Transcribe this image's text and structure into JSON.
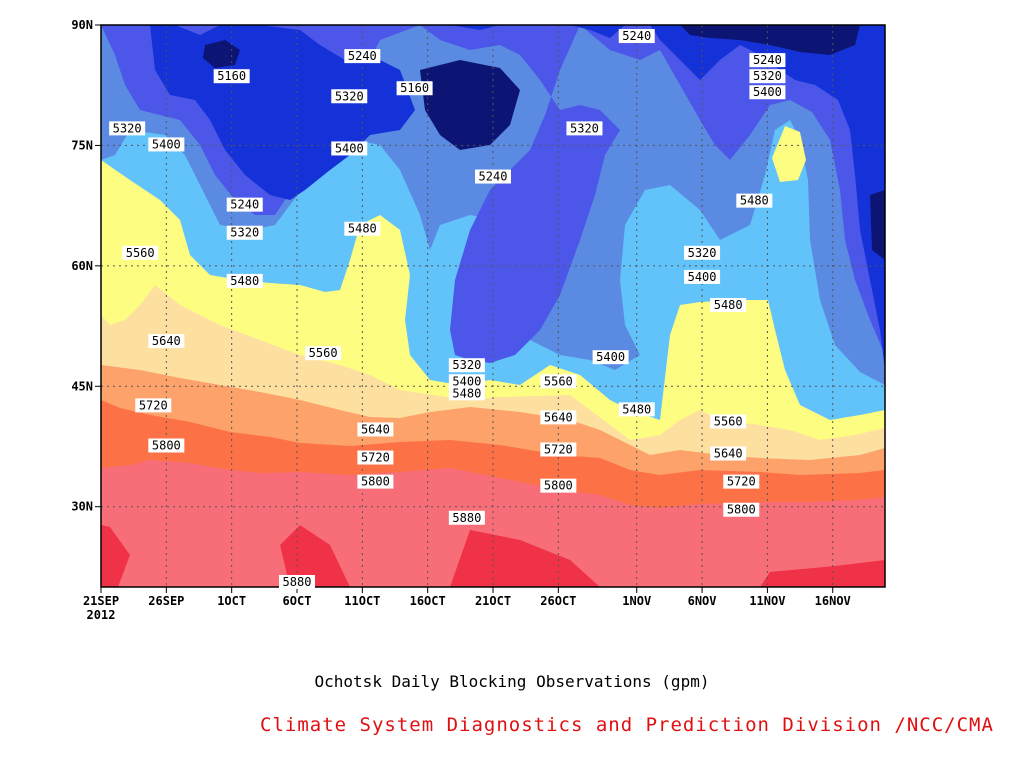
{
  "chart_data": {
    "type": "heatmap",
    "subtype": "filled-contour (Hovmoller, time-latitude)",
    "title": "Ochotsk Daily Blocking Observations (gpm)",
    "source": "Climate System Diagnostics and Prediction Division /NCC/CMA",
    "x_tick_labels": [
      "21SEP",
      "26SEP",
      "1OCT",
      "6OCT",
      "11OCT",
      "16OCT",
      "21OCT",
      "26OCT",
      "1NOV",
      "6NOV",
      "11NOV",
      "16NOV"
    ],
    "x_year_label": "2012",
    "x_dates": [
      "2012-09-21",
      "2012-09-26",
      "2012-10-01",
      "2012-10-06",
      "2012-10-11",
      "2012-10-16",
      "2012-10-21",
      "2012-10-26",
      "2012-11-01",
      "2012-11-06",
      "2012-11-11",
      "2012-11-16"
    ],
    "xlim": [
      "2012-09-21",
      "2012-11-20"
    ],
    "y_tick_labels": [
      "30N",
      "45N",
      "60N",
      "75N",
      "90N"
    ],
    "y_ticks": [
      30,
      45,
      60,
      75,
      90
    ],
    "ylim": [
      20,
      90
    ],
    "grid": true,
    "contour_levels": [
      5160,
      5240,
      5320,
      5400,
      5480,
      5560,
      5640,
      5720,
      5800,
      5880
    ],
    "band_colors": [
      "#0c1573",
      "#1532d8",
      "#4c57ea",
      "#5a8ae2",
      "#62c3fb",
      "#fdfd82",
      "#fde0a0",
      "#fca26a",
      "#fc7146",
      "#f86e78",
      "#ef3248"
    ],
    "contour_labels": [
      {
        "text": "5160",
        "date": "2012-10-01",
        "lat": 83.5
      },
      {
        "text": "5240",
        "date": "2012-10-11",
        "lat": 86
      },
      {
        "text": "5160",
        "date": "2012-10-15",
        "lat": 82
      },
      {
        "text": "5320",
        "date": "2012-10-10",
        "lat": 81
      },
      {
        "text": "5240",
        "date": "2012-11-01",
        "lat": 88.5
      },
      {
        "text": "5240",
        "date": "2012-11-11",
        "lat": 85.5
      },
      {
        "text": "5320",
        "date": "2012-11-11",
        "lat": 83.5
      },
      {
        "text": "5400",
        "date": "2012-11-11",
        "lat": 81.5
      },
      {
        "text": "5320",
        "date": "2012-09-23",
        "lat": 77
      },
      {
        "text": "5400",
        "date": "2012-09-26",
        "lat": 75
      },
      {
        "text": "5400",
        "date": "2012-10-10",
        "lat": 74.5
      },
      {
        "text": "5320",
        "date": "2012-10-28",
        "lat": 77
      },
      {
        "text": "5240",
        "date": "2012-10-21",
        "lat": 71
      },
      {
        "text": "5240",
        "date": "2012-10-02",
        "lat": 67.5
      },
      {
        "text": "5480",
        "date": "2012-11-10",
        "lat": 68
      },
      {
        "text": "5480",
        "date": "2012-10-11",
        "lat": 64.5
      },
      {
        "text": "5320",
        "date": "2012-10-02",
        "lat": 64
      },
      {
        "text": "5560",
        "date": "2012-09-24",
        "lat": 61.5
      },
      {
        "text": "5320",
        "date": "2012-11-06",
        "lat": 61.5
      },
      {
        "text": "5400",
        "date": "2012-11-06",
        "lat": 58.5
      },
      {
        "text": "5480",
        "date": "2012-10-02",
        "lat": 58
      },
      {
        "text": "5480",
        "date": "2012-11-08",
        "lat": 55
      },
      {
        "text": "5640",
        "date": "2012-09-26",
        "lat": 50.5
      },
      {
        "text": "5400",
        "date": "2012-10-30",
        "lat": 48.5
      },
      {
        "text": "5560",
        "date": "2012-10-08",
        "lat": 49
      },
      {
        "text": "5320",
        "date": "2012-10-19",
        "lat": 47.5
      },
      {
        "text": "5400",
        "date": "2012-10-19",
        "lat": 45.5
      },
      {
        "text": "5560",
        "date": "2012-10-26",
        "lat": 45.5
      },
      {
        "text": "5480",
        "date": "2012-10-19",
        "lat": 44
      },
      {
        "text": "5720",
        "date": "2012-09-25",
        "lat": 42.5
      },
      {
        "text": "5480",
        "date": "2012-11-01",
        "lat": 42
      },
      {
        "text": "5640",
        "date": "2012-10-26",
        "lat": 41
      },
      {
        "text": "5560",
        "date": "2012-11-08",
        "lat": 40.5
      },
      {
        "text": "5640",
        "date": "2012-10-12",
        "lat": 39.5
      },
      {
        "text": "5800",
        "date": "2012-09-26",
        "lat": 37.5
      },
      {
        "text": "5720",
        "date": "2012-10-26",
        "lat": 37
      },
      {
        "text": "5640",
        "date": "2012-11-08",
        "lat": 36.5
      },
      {
        "text": "5720",
        "date": "2012-10-12",
        "lat": 36
      },
      {
        "text": "5800",
        "date": "2012-10-12",
        "lat": 33
      },
      {
        "text": "5720",
        "date": "2012-11-09",
        "lat": 33
      },
      {
        "text": "5800",
        "date": "2012-10-26",
        "lat": 32.5
      },
      {
        "text": "5800",
        "date": "2012-11-09",
        "lat": 29.5
      },
      {
        "text": "5880",
        "date": "2012-10-19",
        "lat": 28.5
      },
      {
        "text": "5880",
        "date": "2012-10-06",
        "lat": 20.5
      }
    ]
  },
  "caption": {
    "title": "Ochotsk Daily Blocking Observations (gpm)",
    "source": "Climate System Diagnostics and Prediction Division /NCC/CMA",
    "source_color": "#e01010"
  }
}
